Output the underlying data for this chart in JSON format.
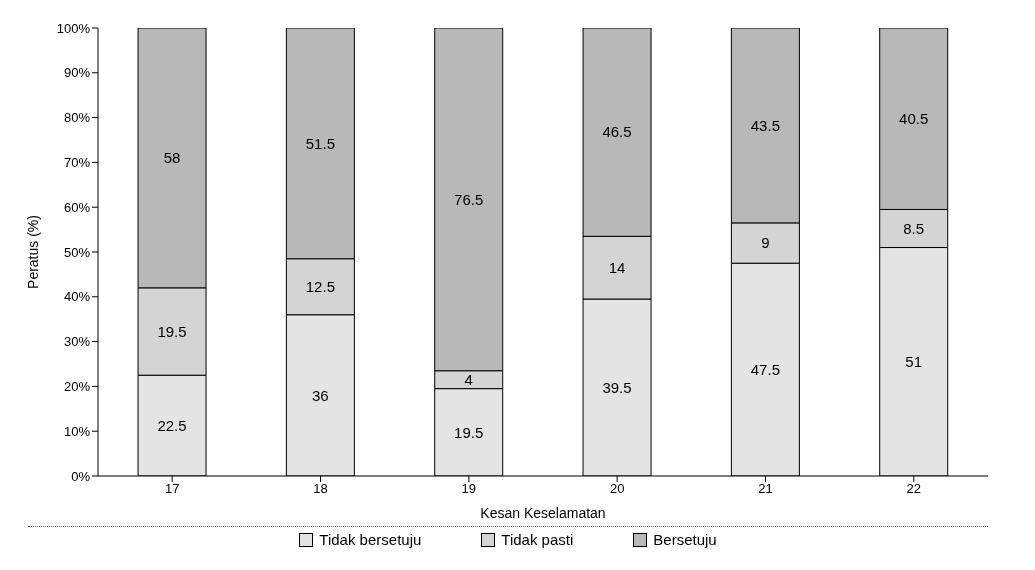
{
  "chart_data": {
    "type": "bar",
    "stacked": true,
    "xlabel": "Kesan Keselamatan",
    "ylabel": "Peratus (%)",
    "categories": [
      "17",
      "18",
      "19",
      "20",
      "21",
      "22"
    ],
    "series": [
      {
        "name": "Tidak bersetuju",
        "color": "#e4e4e4",
        "values": [
          22.5,
          36,
          19.5,
          39.5,
          47.5,
          51
        ]
      },
      {
        "name": "Tidak pasti",
        "color": "#d4d4d4",
        "values": [
          19.5,
          12.5,
          4,
          14,
          9,
          8.5
        ]
      },
      {
        "name": "Bersetuju",
        "color": "#b8b8b8",
        "values": [
          58,
          51.5,
          76.5,
          46.5,
          43.5,
          40.5
        ]
      }
    ],
    "ylim": [
      0,
      100
    ],
    "yticks": [
      {
        "value": 0,
        "label": "0%"
      },
      {
        "value": 10,
        "label": "10%"
      },
      {
        "value": 20,
        "label": "20%"
      },
      {
        "value": 30,
        "label": "30%"
      },
      {
        "value": 40,
        "label": "40%"
      },
      {
        "value": 50,
        "label": "50%"
      },
      {
        "value": 60,
        "label": "60%"
      },
      {
        "value": 70,
        "label": "70%"
      },
      {
        "value": 80,
        "label": "80%"
      },
      {
        "value": 90,
        "label": "90%"
      },
      {
        "value": 100,
        "label": "100%"
      }
    ],
    "data_labels": true,
    "grid": false,
    "legend": "bottom"
  }
}
